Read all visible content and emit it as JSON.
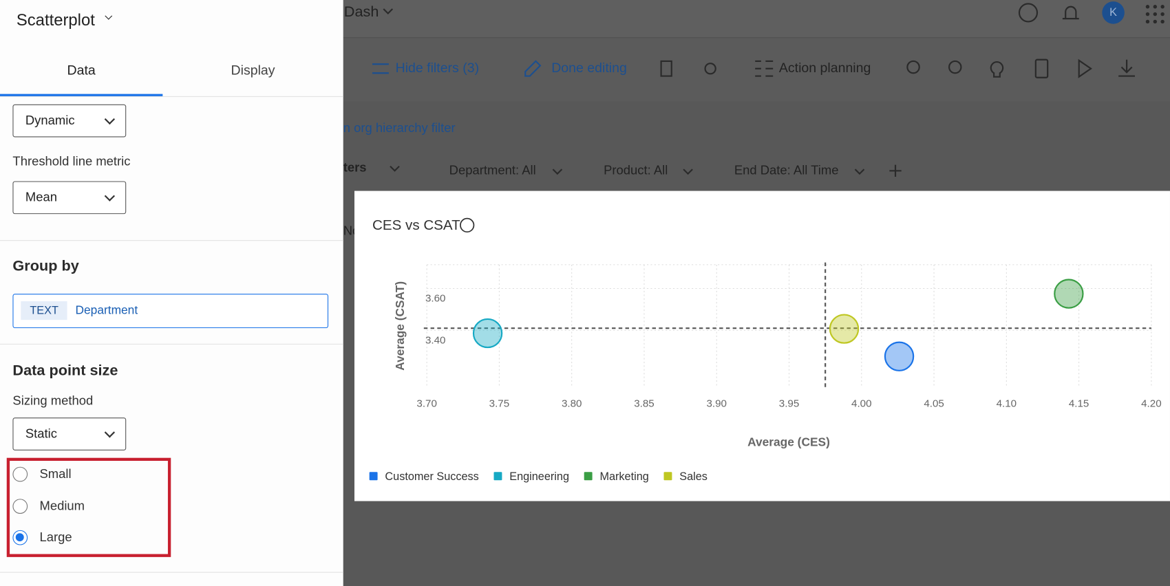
{
  "topbar": {
    "title": "Dash",
    "avatar": "K"
  },
  "toolbar": {
    "items": [
      "Hide filters (3)",
      "Done editing",
      "Action planning"
    ]
  },
  "filters": {
    "link": "n org hierarchy filter",
    "label": "ters",
    "tab_fragment": "No",
    "items": [
      "Department: All",
      "Product: All",
      "End Date: All Time"
    ]
  },
  "panel": {
    "title": "Scatterplot",
    "tabs": [
      "Data",
      "Display"
    ],
    "threshold_type": "Dynamic",
    "threshold_metric_label": "Threshold line metric",
    "threshold_metric": "Mean",
    "group_by_heading": "Group by",
    "group_by_tag": "TEXT",
    "group_by_field": "Department",
    "size_heading": "Data point size",
    "sizing_method_label": "Sizing method",
    "sizing_method": "Static",
    "size_options": [
      "Small",
      "Medium",
      "Large"
    ],
    "selected_size": "Large"
  },
  "chart_data": {
    "type": "scatter",
    "title": "CES vs CSAT",
    "x_label": "Average (CES)",
    "y_label": "Average (CSAT)",
    "xlim": [
      3.7,
      4.2
    ],
    "xticks": [
      {
        "value": 3.7,
        "label": "3.70"
      },
      {
        "value": 3.75,
        "label": "3.75"
      },
      {
        "value": 3.8,
        "label": "3.80"
      },
      {
        "value": 3.85,
        "label": "3.85"
      },
      {
        "value": 3.9,
        "label": "3.90"
      },
      {
        "value": 3.95,
        "label": "3.95"
      },
      {
        "value": 4.0,
        "label": "4.00"
      },
      {
        "value": 4.05,
        "label": "4.05"
      },
      {
        "value": 4.1,
        "label": "4.10"
      },
      {
        "value": 4.15,
        "label": "4.15"
      },
      {
        "value": 4.2,
        "label": "4.20"
      }
    ],
    "ylim": [
      3.125,
      3.714
    ],
    "yticks": [
      {
        "value": 3.4,
        "label": "3.40"
      },
      {
        "value": 3.6,
        "label": "3.60"
      }
    ],
    "grid": true,
    "threshold": {
      "x": 3.975,
      "y": 3.41
    },
    "series": [
      {
        "name": "Customer Success",
        "color": "#1a73e8",
        "x": [
          4.026
        ],
        "values": [
          3.275
        ]
      },
      {
        "name": "Engineering",
        "color": "#17a9c4",
        "x": [
          3.742
        ],
        "values": [
          3.386
        ]
      },
      {
        "name": "Marketing",
        "color": "#3a9e44",
        "x": [
          4.143
        ],
        "values": [
          3.575
        ]
      },
      {
        "name": "Sales",
        "color": "#bfc722",
        "x": [
          3.988
        ],
        "values": [
          3.407
        ]
      }
    ]
  }
}
